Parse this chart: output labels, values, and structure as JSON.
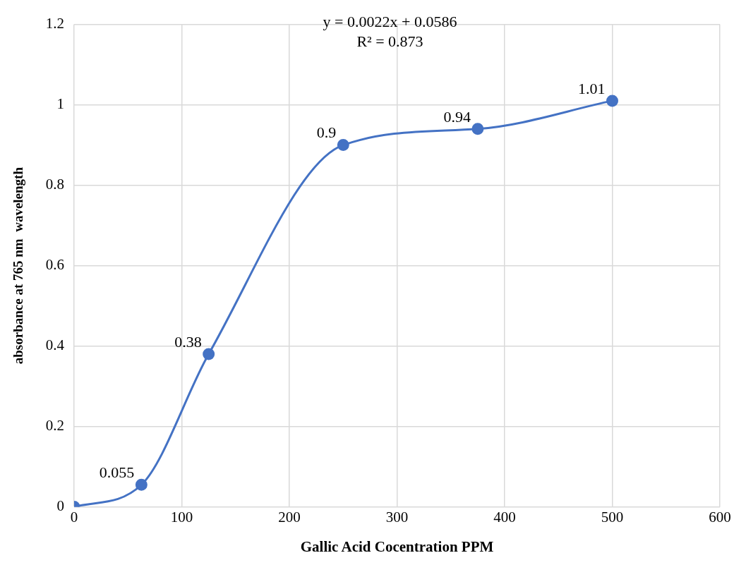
{
  "chart_data": {
    "type": "line",
    "xlabel": "Gallic Acid Cocentration PPM",
    "ylabel": "absorbance at 765 nm  wavelength",
    "annotations": [
      "y = 0.0022x + 0.0586",
      "R² = 0.873"
    ],
    "x": [
      0,
      62.5,
      125,
      250,
      375,
      500
    ],
    "series": [
      {
        "color": "#4472c4",
        "values": [
          0,
          0.055,
          0.38,
          0.9,
          0.94,
          1.01
        ],
        "value_labels": [
          null,
          "0.055",
          "0.38",
          "0.9",
          "0.94",
          "1.01"
        ]
      }
    ],
    "xlim": [
      0,
      600
    ],
    "xticks": [
      0,
      100,
      200,
      300,
      400,
      500,
      600
    ],
    "ylim": [
      0,
      1.2
    ],
    "yticks": [
      0,
      0.2,
      0.4,
      0.6,
      0.8,
      1,
      1.2
    ],
    "grid": true,
    "legend": false,
    "marker": "circle",
    "line_style": "solid"
  }
}
